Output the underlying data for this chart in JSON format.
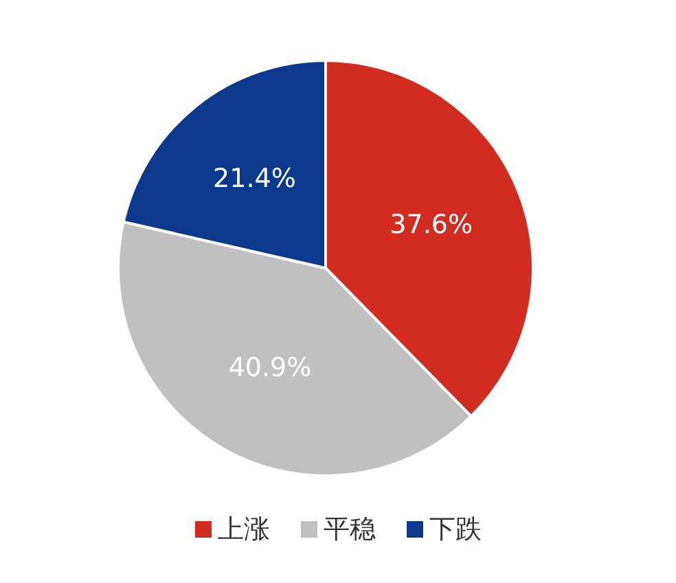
{
  "chart_data": {
    "type": "pie",
    "categories": [
      "上涨",
      "平稳",
      "下跌"
    ],
    "values": [
      37.6,
      40.9,
      21.4
    ],
    "colors": [
      "#d22b1f",
      "#c0c0c0",
      "#0b3a8c"
    ],
    "value_labels": [
      "37.6%",
      "40.9%",
      "21.4%"
    ],
    "legend": "bottom"
  }
}
